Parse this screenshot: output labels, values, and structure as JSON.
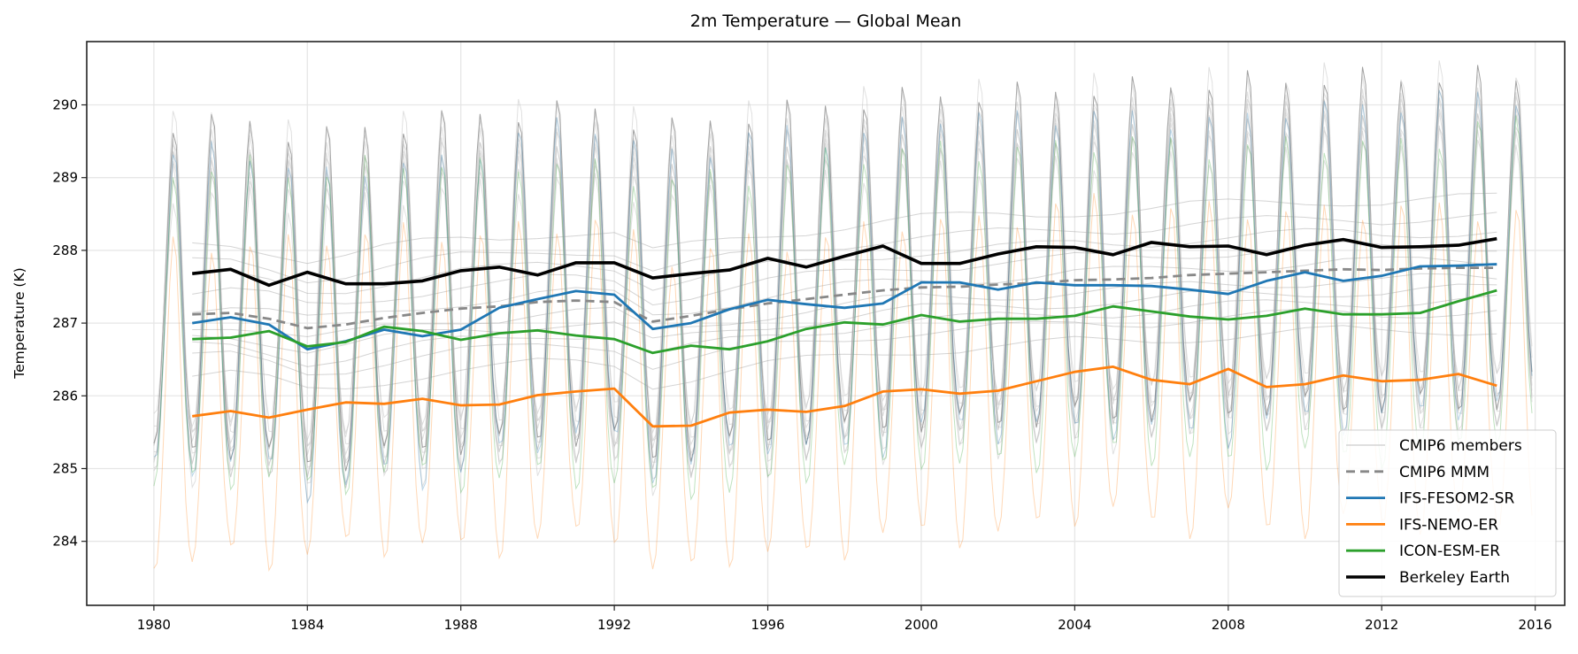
{
  "chart_data": {
    "type": "line",
    "title": "2m Temperature — Global Mean",
    "xlabel": "",
    "ylabel": "Temperature (K)",
    "xlim": [
      1978.25,
      2016.77
    ],
    "ylim": [
      283.12,
      290.87
    ],
    "x_ticks": [
      1980,
      1984,
      1988,
      1992,
      1996,
      2000,
      2004,
      2008,
      2012,
      2016
    ],
    "y_ticks": [
      284,
      285,
      286,
      287,
      288,
      289,
      290
    ],
    "grid": true,
    "legend_position": "lower-right",
    "annual_years": [
      1981,
      1982,
      1983,
      1984,
      1985,
      1986,
      1987,
      1988,
      1989,
      1990,
      1991,
      1992,
      1993,
      1994,
      1995,
      1996,
      1997,
      1998,
      1999,
      2000,
      2001,
      2002,
      2003,
      2004,
      2005,
      2006,
      2007,
      2008,
      2009,
      2010,
      2011,
      2012,
      2013,
      2014,
      2015
    ],
    "monthly_range": [
      "1980-01",
      "2015-12"
    ],
    "seasonal_cycle_shape": [
      -2.0,
      -1.9,
      -1.3,
      -0.4,
      0.6,
      1.5,
      2.1,
      1.9,
      1.0,
      -0.1,
      -1.1,
      -1.7
    ],
    "series": [
      {
        "name": "CMIP6 MMM",
        "color": "#888888",
        "style": "dashed",
        "annual": [
          287.12,
          287.14,
          287.06,
          286.93,
          286.98,
          287.07,
          287.14,
          287.2,
          287.23,
          287.29,
          287.31,
          287.29,
          287.02,
          287.1,
          287.19,
          287.27,
          287.33,
          287.39,
          287.45,
          287.49,
          287.5,
          287.53,
          287.55,
          287.59,
          287.6,
          287.62,
          287.66,
          287.68,
          287.7,
          287.72,
          287.74,
          287.73,
          287.75,
          287.76,
          287.76
        ]
      },
      {
        "name": "IFS-FESOM2-SR",
        "color": "#1f77b4",
        "style": "solid",
        "seasonal_amplitude": 1.05,
        "annual": [
          287.0,
          287.08,
          286.98,
          286.64,
          286.75,
          286.91,
          286.82,
          286.91,
          287.21,
          287.33,
          287.44,
          287.39,
          286.92,
          287.0,
          287.19,
          287.32,
          287.26,
          287.21,
          287.27,
          287.56,
          287.56,
          287.46,
          287.56,
          287.52,
          287.52,
          287.51,
          287.46,
          287.4,
          287.58,
          287.7,
          287.58,
          287.65,
          287.78,
          287.79,
          287.81
        ]
      },
      {
        "name": "IFS-NEMO-ER",
        "color": "#ff7f0e",
        "style": "solid",
        "seasonal_amplitude": 1.05,
        "annual": [
          285.72,
          285.79,
          285.7,
          285.81,
          285.91,
          285.89,
          285.96,
          285.87,
          285.88,
          286.01,
          286.06,
          286.1,
          285.58,
          285.59,
          285.77,
          285.81,
          285.78,
          285.86,
          286.06,
          286.09,
          286.03,
          286.07,
          286.2,
          286.33,
          286.4,
          286.22,
          286.16,
          286.37,
          286.12,
          286.16,
          286.28,
          286.2,
          286.22,
          286.3,
          286.14
        ]
      },
      {
        "name": "ICON-ESM-ER",
        "color": "#2ca02c",
        "style": "solid",
        "seasonal_amplitude": 1.05,
        "annual": [
          286.78,
          286.8,
          286.89,
          286.68,
          286.74,
          286.95,
          286.89,
          286.77,
          286.86,
          286.9,
          286.83,
          286.78,
          286.59,
          286.69,
          286.64,
          286.75,
          286.92,
          287.01,
          286.98,
          287.11,
          287.02,
          287.06,
          287.06,
          287.1,
          287.23,
          287.16,
          287.09,
          287.05,
          287.1,
          287.2,
          287.12,
          287.12,
          287.14,
          287.3,
          287.45
        ]
      },
      {
        "name": "Berkeley Earth",
        "color": "#000000",
        "style": "solid",
        "annual": [
          287.68,
          287.74,
          287.52,
          287.7,
          287.54,
          287.54,
          287.58,
          287.72,
          287.77,
          287.66,
          287.83,
          287.83,
          287.62,
          287.68,
          287.73,
          287.89,
          287.77,
          287.92,
          288.06,
          287.82,
          287.82,
          287.95,
          288.05,
          288.04,
          287.94,
          288.11,
          288.05,
          288.06,
          287.94,
          288.07,
          288.15,
          288.04,
          288.05,
          288.07,
          288.16
        ]
      }
    ],
    "cmip6_members": {
      "name": "CMIP6 members",
      "color": "#bbbbbb",
      "offsets_from_mmm": [
        -0.85,
        -0.6,
        -0.45,
        -0.3,
        -0.15,
        0.1,
        0.3,
        0.5,
        0.7,
        0.95
      ]
    },
    "legend": [
      "CMIP6 members",
      "CMIP6 MMM",
      "IFS-FESOM2-SR",
      "IFS-NEMO-ER",
      "ICON-ESM-ER",
      "Berkeley Earth"
    ]
  }
}
